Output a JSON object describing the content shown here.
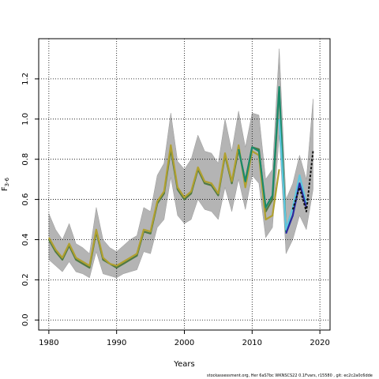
{
  "footer_text": "stockassessment.org, Her 6aS7bc WKNSCS22 0.1Fvars, r15580 , git: ec2c2a0c6dde",
  "chart_data": {
    "type": "line",
    "title": "",
    "xlabel": "Years",
    "ylabel": "F3-6",
    "ylabel_main": "F",
    "ylabel_sub": "3-6",
    "xlim": [
      1978.5,
      2021.5
    ],
    "ylim": [
      -0.05,
      1.4
    ],
    "x_ticks": [
      1980,
      1990,
      2000,
      2010,
      2020
    ],
    "y_ticks": [
      0.0,
      0.2,
      0.4,
      0.6,
      0.8,
      1.0,
      1.2
    ],
    "y_tick_labels": [
      "0.0",
      "0.2",
      "0.4",
      "0.6",
      "0.8",
      "1.0",
      "1.2"
    ],
    "x_tick_labels": [
      "1980",
      "1990",
      "2000",
      "2010",
      "2020"
    ],
    "grid": true,
    "band": {
      "x": [
        1980,
        1981,
        1982,
        1983,
        1984,
        1985,
        1986,
        1987,
        1988,
        1989,
        1990,
        1991,
        1992,
        1993,
        1994,
        1995,
        1996,
        1997,
        1998,
        1999,
        2000,
        2001,
        2002,
        2003,
        2004,
        2005,
        2006,
        2007,
        2008,
        2009,
        2010,
        2011,
        2012,
        2013,
        2014,
        2015,
        2016,
        2017,
        2018,
        2019
      ],
      "upper": [
        0.53,
        0.45,
        0.4,
        0.48,
        0.38,
        0.36,
        0.33,
        0.56,
        0.4,
        0.36,
        0.34,
        0.37,
        0.4,
        0.42,
        0.56,
        0.54,
        0.72,
        0.78,
        1.03,
        0.79,
        0.75,
        0.8,
        0.92,
        0.84,
        0.83,
        0.78,
        1.0,
        0.84,
        1.04,
        0.86,
        1.03,
        1.02,
        0.7,
        0.75,
        1.35,
        0.6,
        0.68,
        0.82,
        0.7,
        1.1
      ],
      "lower": [
        0.3,
        0.27,
        0.24,
        0.29,
        0.24,
        0.23,
        0.21,
        0.34,
        0.23,
        0.22,
        0.21,
        0.23,
        0.24,
        0.25,
        0.34,
        0.33,
        0.46,
        0.5,
        0.71,
        0.52,
        0.48,
        0.5,
        0.6,
        0.55,
        0.54,
        0.5,
        0.66,
        0.54,
        0.7,
        0.55,
        0.72,
        0.68,
        0.41,
        0.46,
        0.92,
        0.33,
        0.4,
        0.52,
        0.45,
        0.65
      ]
    },
    "series": [
      {
        "color": "#4f7942",
        "dash": false,
        "x": [
          1980,
          1981,
          1982,
          1983,
          1984,
          1985,
          1986,
          1987,
          1988,
          1989,
          1990,
          1991,
          1992,
          1993,
          1994,
          1995,
          1996,
          1997,
          1998,
          1999,
          2000,
          2001,
          2002,
          2003,
          2004,
          2005,
          2006,
          2007,
          2008,
          2009,
          2010,
          2011,
          2012,
          2013,
          2014
        ],
        "y": [
          0.4,
          0.34,
          0.3,
          0.37,
          0.3,
          0.28,
          0.26,
          0.44,
          0.3,
          0.28,
          0.26,
          0.28,
          0.3,
          0.32,
          0.44,
          0.43,
          0.58,
          0.63,
          0.85,
          0.65,
          0.6,
          0.63,
          0.75,
          0.68,
          0.67,
          0.62,
          0.82,
          0.68,
          0.85,
          0.69,
          0.86,
          0.85,
          0.54,
          0.6,
          1.14
        ]
      },
      {
        "color": "#b0a030",
        "dash": false,
        "x": [
          1980,
          1981,
          1982,
          1983,
          1984,
          1985,
          1986,
          1987,
          1988,
          1989,
          1990,
          1991,
          1992,
          1993,
          1994,
          1995,
          1996,
          1997,
          1998,
          1999,
          2000,
          2001,
          2002,
          2003,
          2004,
          2005,
          2006,
          2007,
          2008,
          2009,
          2010,
          2011,
          2012,
          2013,
          2014
        ],
        "y": [
          0.41,
          0.35,
          0.31,
          0.38,
          0.31,
          0.29,
          0.27,
          0.45,
          0.31,
          0.28,
          0.27,
          0.29,
          0.31,
          0.33,
          0.45,
          0.44,
          0.59,
          0.64,
          0.87,
          0.66,
          0.61,
          0.64,
          0.76,
          0.69,
          0.68,
          0.63,
          0.83,
          0.69,
          0.87,
          0.66,
          0.84,
          0.82,
          0.5,
          0.52,
          0.75
        ]
      },
      {
        "color": "#1a8a6a",
        "dash": false,
        "x": [
          2008,
          2009,
          2010,
          2011,
          2012,
          2013,
          2014,
          2015,
          2016
        ],
        "y": [
          0.85,
          0.69,
          0.86,
          0.84,
          0.56,
          0.62,
          1.16,
          0.44,
          0.52
        ]
      },
      {
        "color": "#5ec8e0",
        "dash": false,
        "x": [
          2014,
          2015,
          2016,
          2017,
          2018
        ],
        "y": [
          1.0,
          0.45,
          0.56,
          0.72,
          0.58
        ]
      },
      {
        "color": "#2a2aa0",
        "dash": false,
        "x": [
          2015,
          2016,
          2017,
          2018
        ],
        "y": [
          0.43,
          0.52,
          0.68,
          0.56
        ]
      },
      {
        "color": "#111111",
        "dash": true,
        "x": [
          2016,
          2017,
          2018,
          2019
        ],
        "y": [
          0.55,
          0.66,
          0.54,
          0.84
        ]
      }
    ]
  }
}
